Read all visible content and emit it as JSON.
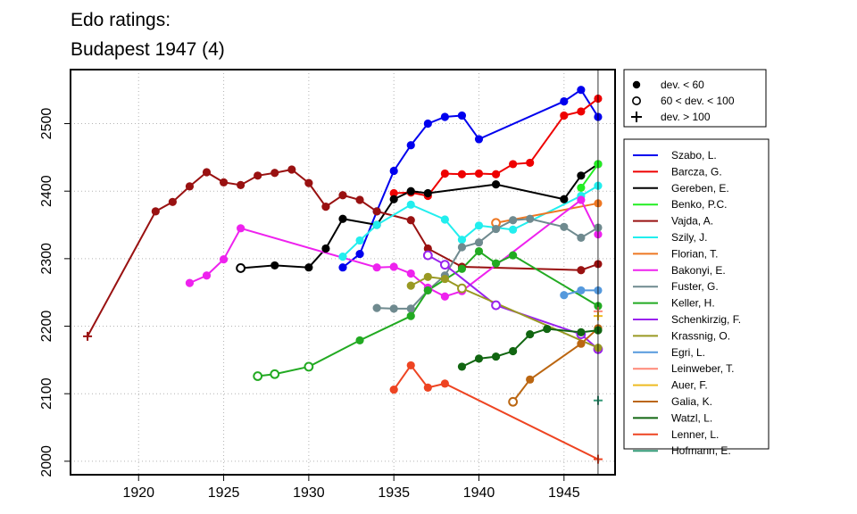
{
  "chart_data": {
    "type": "line",
    "title": "Edo ratings:",
    "subtitle": "Budapest 1947 (4)",
    "xlim": [
      1916,
      1948
    ],
    "ylim": [
      1980,
      2580
    ],
    "x_ticks": [
      1920,
      1925,
      1930,
      1935,
      1940,
      1945
    ],
    "y_ticks": [
      2000,
      2100,
      2200,
      2300,
      2400,
      2500
    ],
    "grid": "dotted",
    "event_year": 1947,
    "deviation_legend": [
      "dev. < 60",
      "60 < dev. < 100",
      "dev. > 100"
    ],
    "series": [
      {
        "name": "Szabo, L.",
        "color": "#0000ee",
        "points": [
          [
            1932,
            2287,
            "f"
          ],
          [
            1933,
            2307,
            "f"
          ],
          [
            1934,
            2370,
            "f"
          ],
          [
            1935,
            2430,
            "f"
          ],
          [
            1936,
            2468,
            "f"
          ],
          [
            1937,
            2500,
            "f"
          ],
          [
            1938,
            2510,
            "f"
          ],
          [
            1939,
            2512,
            "f"
          ],
          [
            1940,
            2477,
            "f"
          ],
          [
            1945,
            2533,
            "f"
          ],
          [
            1946,
            2550,
            "f"
          ],
          [
            1947,
            2510,
            "f"
          ]
        ]
      },
      {
        "name": "Barcza, G.",
        "color": "#ee0000",
        "points": [
          [
            1935,
            2397,
            "f"
          ],
          [
            1936,
            2398,
            "f"
          ],
          [
            1937,
            2393,
            "f"
          ],
          [
            1938,
            2426,
            "f"
          ],
          [
            1939,
            2425,
            "f"
          ],
          [
            1940,
            2426,
            "f"
          ],
          [
            1941,
            2425,
            "f"
          ],
          [
            1942,
            2440,
            "f"
          ],
          [
            1943,
            2442,
            "f"
          ],
          [
            1945,
            2512,
            "f"
          ],
          [
            1946,
            2518,
            "f"
          ],
          [
            1947,
            2537,
            "f"
          ]
        ]
      },
      {
        "name": "Gereben, E.",
        "color": "#000000",
        "points": [
          [
            1926,
            2286,
            "o"
          ],
          [
            1928,
            2290,
            "f"
          ],
          [
            1930,
            2287,
            "f"
          ],
          [
            1931,
            2315,
            "f"
          ],
          [
            1932,
            2359,
            "f"
          ],
          [
            1934,
            2350,
            "f"
          ],
          [
            1935,
            2388,
            "f"
          ],
          [
            1936,
            2400,
            "f"
          ],
          [
            1937,
            2397,
            "f"
          ],
          [
            1941,
            2410,
            "f"
          ],
          [
            1945,
            2388,
            "f"
          ],
          [
            1946,
            2423,
            "f"
          ],
          [
            1947,
            2440,
            "f"
          ]
        ]
      },
      {
        "name": "Benko, P.C.",
        "color": "#22ee22",
        "points": [
          [
            1946,
            2405,
            "f"
          ],
          [
            1947,
            2440,
            "f"
          ]
        ]
      },
      {
        "name": "Vajda, A.",
        "color": "#991111",
        "points": [
          [
            1917,
            2185,
            "n"
          ],
          [
            1921,
            2370,
            "f"
          ],
          [
            1922,
            2384,
            "f"
          ],
          [
            1923,
            2407,
            "f"
          ],
          [
            1924,
            2428,
            "f"
          ],
          [
            1925,
            2413,
            "f"
          ],
          [
            1926,
            2409,
            "f"
          ],
          [
            1927,
            2423,
            "f"
          ],
          [
            1928,
            2427,
            "f"
          ],
          [
            1929,
            2432,
            "f"
          ],
          [
            1930,
            2412,
            "f"
          ],
          [
            1931,
            2377,
            "f"
          ],
          [
            1932,
            2394,
            "f"
          ],
          [
            1933,
            2387,
            "f"
          ],
          [
            1934,
            2370,
            "f"
          ],
          [
            1936,
            2357,
            "f"
          ],
          [
            1937,
            2315,
            "f"
          ],
          [
            1939,
            2288,
            "f"
          ],
          [
            1946,
            2283,
            "f"
          ],
          [
            1947,
            2292,
            "f"
          ]
        ]
      },
      {
        "name": "Szily, J.",
        "color": "#22eeee",
        "points": [
          [
            1932,
            2303,
            "f"
          ],
          [
            1933,
            2327,
            "f"
          ],
          [
            1934,
            2350,
            "f"
          ],
          [
            1936,
            2380,
            "f"
          ],
          [
            1938,
            2358,
            "f"
          ],
          [
            1939,
            2328,
            "f"
          ],
          [
            1940,
            2349,
            "f"
          ],
          [
            1942,
            2343,
            "f"
          ],
          [
            1946,
            2393,
            "f"
          ],
          [
            1947,
            2408,
            "f"
          ]
        ]
      },
      {
        "name": "Florian, T.",
        "color": "#ee7722",
        "points": [
          [
            1941,
            2353,
            "o"
          ],
          [
            1947,
            2382,
            "f"
          ]
        ]
      },
      {
        "name": "Bakonyi, E.",
        "color": "#ee22ee",
        "points": [
          [
            1923,
            2264,
            "f"
          ],
          [
            1924,
            2275,
            "f"
          ],
          [
            1925,
            2299,
            "f"
          ],
          [
            1926,
            2345,
            "f"
          ],
          [
            1934,
            2287,
            "f"
          ],
          [
            1935,
            2288,
            "f"
          ],
          [
            1936,
            2278,
            "f"
          ],
          [
            1937,
            2257,
            "f"
          ],
          [
            1938,
            2244,
            "f"
          ],
          [
            1939,
            2252,
            "f"
          ],
          [
            1946,
            2387,
            "f"
          ],
          [
            1947,
            2336,
            "f"
          ]
        ]
      },
      {
        "name": "Fuster, G.",
        "color": "#6f8a8f",
        "points": [
          [
            1934,
            2227,
            "f"
          ],
          [
            1935,
            2226,
            "f"
          ],
          [
            1936,
            2226,
            "f"
          ],
          [
            1937,
            2253,
            "f"
          ],
          [
            1938,
            2275,
            "f"
          ],
          [
            1939,
            2317,
            "f"
          ],
          [
            1940,
            2324,
            "f"
          ],
          [
            1941,
            2344,
            "f"
          ],
          [
            1942,
            2357,
            "f"
          ],
          [
            1943,
            2359,
            "f"
          ],
          [
            1945,
            2347,
            "f"
          ],
          [
            1946,
            2331,
            "f"
          ],
          [
            1947,
            2346,
            "f"
          ]
        ]
      },
      {
        "name": "Keller, H.",
        "color": "#22aa22",
        "points": [
          [
            1927,
            2126,
            "o"
          ],
          [
            1928,
            2129,
            "o"
          ],
          [
            1930,
            2140,
            "o"
          ],
          [
            1933,
            2179,
            "f"
          ],
          [
            1936,
            2215,
            "f"
          ],
          [
            1937,
            2253,
            "f"
          ],
          [
            1939,
            2285,
            "f"
          ],
          [
            1940,
            2311,
            "f"
          ],
          [
            1941,
            2293,
            "f"
          ],
          [
            1942,
            2305,
            "f"
          ],
          [
            1947,
            2230,
            "f"
          ]
        ]
      },
      {
        "name": "Schenkirzig, F.",
        "color": "#9922ee",
        "points": [
          [
            1937,
            2305,
            "o"
          ],
          [
            1938,
            2291,
            "o"
          ],
          [
            1941,
            2231,
            "o"
          ],
          [
            1946,
            2188,
            "o"
          ],
          [
            1947,
            2166,
            "o"
          ]
        ]
      },
      {
        "name": "Krassnig, O.",
        "color": "#999922",
        "points": [
          [
            1936,
            2260,
            "f"
          ],
          [
            1937,
            2273,
            "f"
          ],
          [
            1938,
            2270,
            "f"
          ],
          [
            1939,
            2256,
            "o"
          ],
          [
            1947,
            2168,
            "f"
          ]
        ]
      },
      {
        "name": "Egri, L.",
        "color": "#5599dd",
        "points": [
          [
            1945,
            2246,
            "f"
          ],
          [
            1946,
            2253,
            "f"
          ],
          [
            1947,
            2253,
            "f"
          ]
        ]
      },
      {
        "name": "Leinweber, T.",
        "color": "#ff8877",
        "points": [
          [
            1947,
            2222,
            "n"
          ]
        ]
      },
      {
        "name": "Auer, F.",
        "color": "#eebb22",
        "points": [
          [
            1947,
            2215,
            "n"
          ]
        ]
      },
      {
        "name": "Galia, K.",
        "color": "#bb6611",
        "points": [
          [
            1942,
            2088,
            "o"
          ],
          [
            1943,
            2121,
            "f"
          ],
          [
            1946,
            2174,
            "f"
          ],
          [
            1947,
            2197,
            "f"
          ]
        ]
      },
      {
        "name": "Watzl, L.",
        "color": "#116611",
        "points": [
          [
            1939,
            2140,
            "f"
          ],
          [
            1940,
            2152,
            "f"
          ],
          [
            1941,
            2155,
            "f"
          ],
          [
            1942,
            2163,
            "f"
          ],
          [
            1943,
            2188,
            "f"
          ],
          [
            1944,
            2196,
            "f"
          ],
          [
            1946,
            2191,
            "f"
          ],
          [
            1947,
            2194,
            "f"
          ]
        ]
      },
      {
        "name": "Lenner, L.",
        "color": "#ee4422",
        "points": [
          [
            1935,
            2106,
            "f"
          ],
          [
            1936,
            2142,
            "f"
          ],
          [
            1937,
            2109,
            "f"
          ],
          [
            1938,
            2115,
            "f"
          ],
          [
            1947,
            2003,
            "n"
          ]
        ]
      },
      {
        "name": "Hofmann, E.",
        "color": "#339977",
        "points": [
          [
            1947,
            2090,
            "n"
          ]
        ]
      }
    ]
  }
}
